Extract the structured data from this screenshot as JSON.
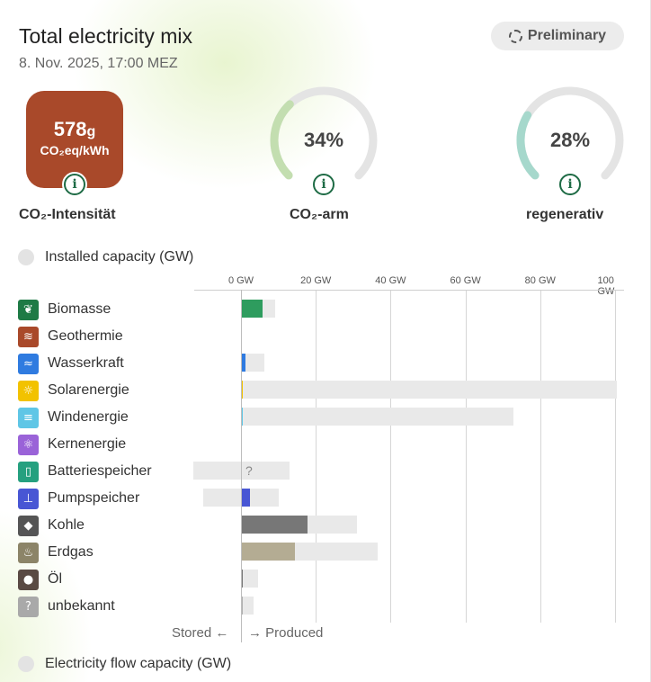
{
  "header": {
    "title": "Total electricity mix",
    "subtitle": "8. Nov. 2025, 17:00 MEZ",
    "badge": "Preliminary"
  },
  "kpis": {
    "co2_value": "578",
    "co2_value_suffix": "g",
    "co2_unit": "CO₂eq/kWh",
    "co2_label": "CO₂-Intensität",
    "low_carbon_pct": "34%",
    "low_carbon_fraction": 0.34,
    "low_carbon_label": "CO₂-arm",
    "renewable_pct": "28%",
    "renewable_fraction": 0.28,
    "renewable_label": "regenerativ",
    "info_glyph": "i"
  },
  "sections": {
    "installed": "Installed capacity (GW)",
    "flow": "Electricity flow capacity (GW)"
  },
  "chart_data": {
    "type": "bar",
    "xlabel": "",
    "xlim": [
      -13,
      100
    ],
    "ticks": [
      "0 GW",
      "20 GW",
      "40 GW",
      "60 GW",
      "80 GW",
      "100 GW"
    ],
    "tick_values": [
      0,
      20,
      40,
      60,
      80,
      100
    ],
    "categories": [
      "Biomasse",
      "Geothermie",
      "Wasserkraft",
      "Solarenergie",
      "Windenergie",
      "Kernenergie",
      "Batteriespeicher",
      "Pumpspeicher",
      "Kohle",
      "Erdgas",
      "Öl",
      "unbekannt"
    ],
    "series": [
      {
        "values": [
          5.8,
          0,
          1.2,
          0.4,
          0.6,
          0,
          0,
          2.5,
          17.8,
          14.4,
          0.2,
          0.2
        ]
      },
      {
        "values": [
          9.2,
          0.1,
          6.3,
          100.5,
          72.8,
          0,
          13.0,
          10.0,
          31.0,
          36.5,
          4.5,
          3.3
        ]
      },
      {
        "values": [
          0,
          0,
          0,
          0,
          0,
          0,
          -12.8,
          -10.0,
          0,
          0,
          0,
          0
        ]
      }
    ],
    "unknown_marker": "?",
    "colors": {
      "Biomasse": "#2e9c5e",
      "Geothermie": "#a9492a",
      "Wasserkraft": "#2f7be0",
      "Solarenergie": "#f2c200",
      "Windenergie": "#5fc6e6",
      "Kernenergie": "#9a63d8",
      "Batteriespeicher": "#25a07f",
      "Pumpspeicher": "#4856d4",
      "Kohle": "#777777",
      "Erdgas": "#b4ac93",
      "Öl": "#777777",
      "unbekannt": "#b0b0b0"
    }
  },
  "rows": [
    {
      "label": "Biomasse",
      "icon": "leaf-icon",
      "glyph": "❦",
      "color": "#1e7a45"
    },
    {
      "label": "Geothermie",
      "icon": "heat-waves-icon",
      "glyph": "≋",
      "color": "#a9492a"
    },
    {
      "label": "Wasserkraft",
      "icon": "water-icon",
      "glyph": "≈",
      "color": "#2f7be0"
    },
    {
      "label": "Solarenergie",
      "icon": "sun-icon",
      "glyph": "☼",
      "color": "#f2c200"
    },
    {
      "label": "Windenergie",
      "icon": "wind-icon",
      "glyph": "≡",
      "color": "#5fc6e6"
    },
    {
      "label": "Kernenergie",
      "icon": "atom-icon",
      "glyph": "⚛",
      "color": "#9a63d8"
    },
    {
      "label": "Batteriespeicher",
      "icon": "battery-icon",
      "glyph": "▯",
      "color": "#25a07f"
    },
    {
      "label": "Pumpspeicher",
      "icon": "pumped-storage-icon",
      "glyph": "⊥",
      "color": "#4856d4"
    },
    {
      "label": "Kohle",
      "icon": "coal-icon",
      "glyph": "◆",
      "color": "#555555"
    },
    {
      "label": "Erdgas",
      "icon": "flame-icon",
      "glyph": "♨",
      "color": "#8c8468"
    },
    {
      "label": "Öl",
      "icon": "drop-icon",
      "glyph": "●",
      "color": "#5a4a44"
    },
    {
      "label": "unbekannt",
      "icon": "question-icon",
      "glyph": "?",
      "color": "#a9a9a9"
    }
  ],
  "footer": {
    "stored": "Stored ←",
    "produced": "→ Produced"
  }
}
